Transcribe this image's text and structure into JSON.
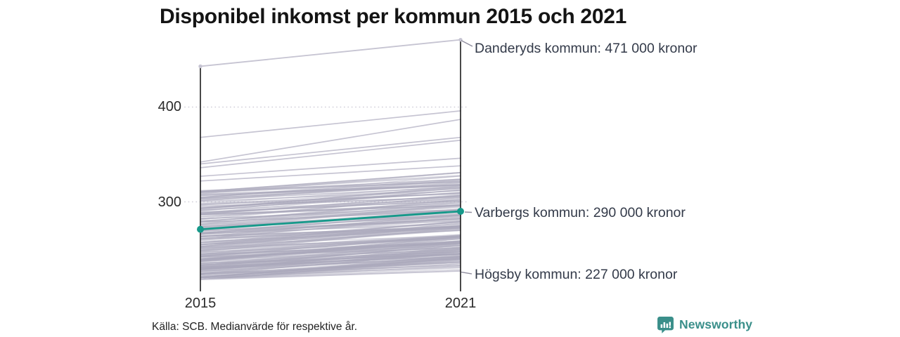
{
  "title": "Disponibel inkomst per kommun 2015 och 2021",
  "axes": {
    "y_ticks": [
      "400",
      "300"
    ],
    "x_ticks": [
      "2015",
      "2021"
    ]
  },
  "footer": {
    "source": "Källa: SCB. Medianvärde för respektive år."
  },
  "branding": {
    "wordmark": "Newsworthy"
  },
  "colors": {
    "accent": "#16998a",
    "line_gray": "#c6c4d2",
    "bundle_gray": "#aba9bc",
    "axis": "#1c1c1c",
    "grid": "#d2d0da",
    "connector": "#8f8d9e",
    "brand": "#3a8f8a"
  },
  "chart_data": {
    "type": "line",
    "subtype": "slopegraph",
    "title": "Disponibel inkomst per kommun 2015 och 2021",
    "x": [
      2015,
      2021
    ],
    "y_unit": "1000 kronor (disponibel inkomst, medianvärde)",
    "y_ticks": [
      400,
      300
    ],
    "ylim": [
      210,
      480
    ],
    "grid": "dotted-horizontal",
    "labeled_series": [
      {
        "name": "Danderyds kommun",
        "values": [
          443,
          471
        ],
        "annotation": "Danderyds kommun: 471 000 kronor",
        "highlighted": false
      },
      {
        "name": "Varbergs kommun",
        "values": [
          271,
          290
        ],
        "annotation": "Varbergs kommun: 290 000 kronor",
        "highlighted": true
      },
      {
        "name": "Högsby kommun",
        "values": [
          218,
          227
        ],
        "annotation": "Högsby kommun: 227 000 kronor",
        "highlighted": false
      }
    ],
    "unlabeled_upper_lines": [
      [
        368,
        396
      ],
      [
        342,
        387
      ],
      [
        340,
        368
      ],
      [
        336,
        365
      ],
      [
        327,
        346
      ],
      [
        322,
        338
      ]
    ],
    "background_bundle": {
      "description": "remaining Swedish municipalities, unlabeled gray slope lines",
      "count": 278,
      "start_range": [
        218,
        312
      ],
      "gain_range": [
        9,
        26
      ],
      "max_end": 331,
      "seed": 12345
    }
  }
}
